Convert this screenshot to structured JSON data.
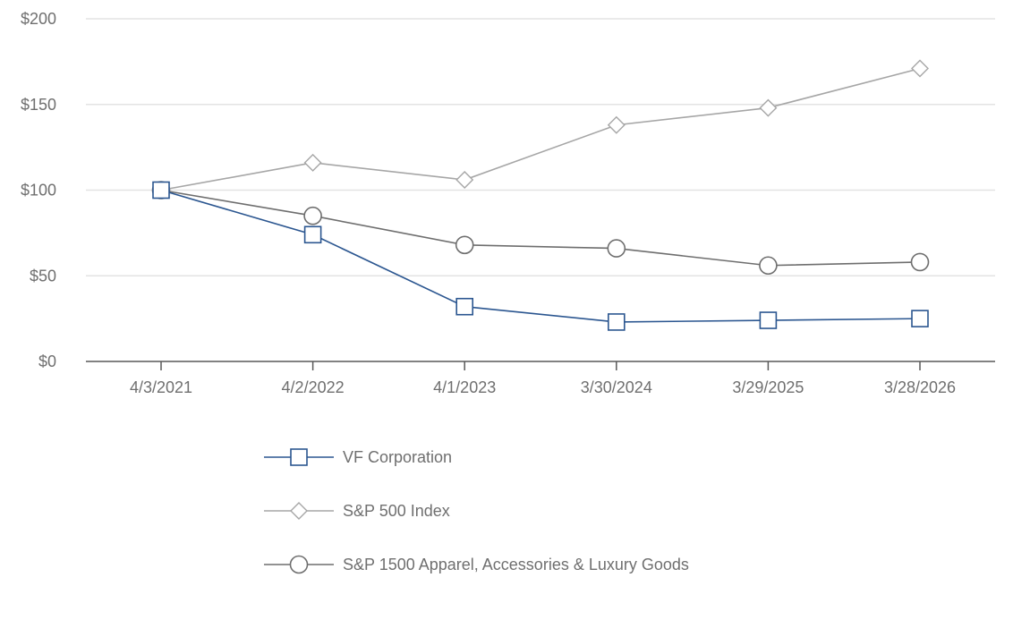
{
  "chart_data": {
    "type": "line",
    "title": "",
    "xlabel": "",
    "ylabel": "",
    "categories": [
      "4/3/2021",
      "4/2/2022",
      "4/1/2023",
      "3/30/2024",
      "3/29/2025",
      "3/28/2026"
    ],
    "y_ticks": [
      "$0",
      "$50",
      "$100",
      "$150",
      "$200"
    ],
    "y_tick_values": [
      0,
      50,
      100,
      150,
      200
    ],
    "ylim": [
      0,
      200
    ],
    "grid": true,
    "legend_position": "bottom",
    "series": [
      {
        "name": "VF Corporation",
        "values": [
          100,
          74,
          32,
          23,
          24,
          25
        ],
        "color": "#2b5690",
        "marker": "square"
      },
      {
        "name": "S&P 500 Index",
        "values": [
          100,
          116,
          106,
          138,
          148,
          171
        ],
        "color": "#a6a6a6",
        "marker": "diamond"
      },
      {
        "name": "S&P 1500 Apparel, Accessories & Luxury Goods",
        "values": [
          100,
          85,
          68,
          66,
          56,
          58
        ],
        "color": "#6e6e6e",
        "marker": "circle"
      }
    ]
  }
}
